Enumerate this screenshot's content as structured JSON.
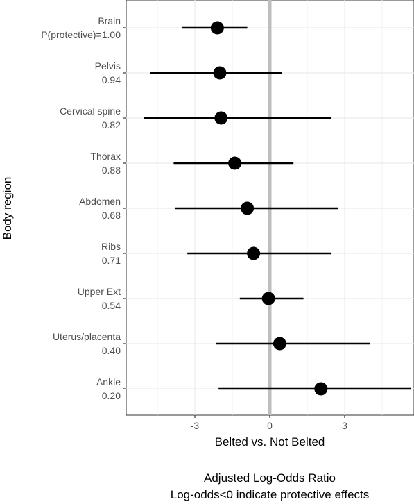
{
  "chart_data": {
    "type": "forest",
    "ylabel": "Body region",
    "xlabel": "Belted vs. Not Belted",
    "subtitle_lines": [
      "Adjusted Log-Odds Ratio",
      "Log-odds<0 indicate protective effects"
    ],
    "xlim": [
      -5.05,
      5.65
    ],
    "x_ticks": [
      -3,
      0,
      3
    ],
    "x_tick_labels": [
      "-3",
      "0",
      "3"
    ],
    "reference_line": 0,
    "grid": true,
    "rows": [
      {
        "name": "Brain",
        "prob_label": "P(protective)=1.00",
        "estimate": -2.1,
        "lower": -3.5,
        "upper": -0.9
      },
      {
        "name": "Pelvis",
        "prob_label": "0.94",
        "estimate": -2.0,
        "lower": -4.8,
        "upper": 0.5
      },
      {
        "name": "Cervical spine",
        "prob_label": "0.82",
        "estimate": -1.95,
        "lower": -5.05,
        "upper": 2.45
      },
      {
        "name": "Thorax",
        "prob_label": "0.88",
        "estimate": -1.4,
        "lower": -3.85,
        "upper": 0.95
      },
      {
        "name": "Abdomen",
        "prob_label": "0.68",
        "estimate": -0.9,
        "lower": -3.8,
        "upper": 2.75
      },
      {
        "name": "Ribs",
        "prob_label": "0.71",
        "estimate": -0.65,
        "lower": -3.3,
        "upper": 2.45
      },
      {
        "name": "Upper Ext",
        "prob_label": "0.54",
        "estimate": -0.05,
        "lower": -1.2,
        "upper": 1.35
      },
      {
        "name": "Uterus/placenta",
        "prob_label": "0.40",
        "estimate": 0.4,
        "lower": -2.15,
        "upper": 4.0
      },
      {
        "name": "Ankle",
        "prob_label": "0.20",
        "estimate": 2.05,
        "lower": -2.05,
        "upper": 5.65
      }
    ]
  }
}
